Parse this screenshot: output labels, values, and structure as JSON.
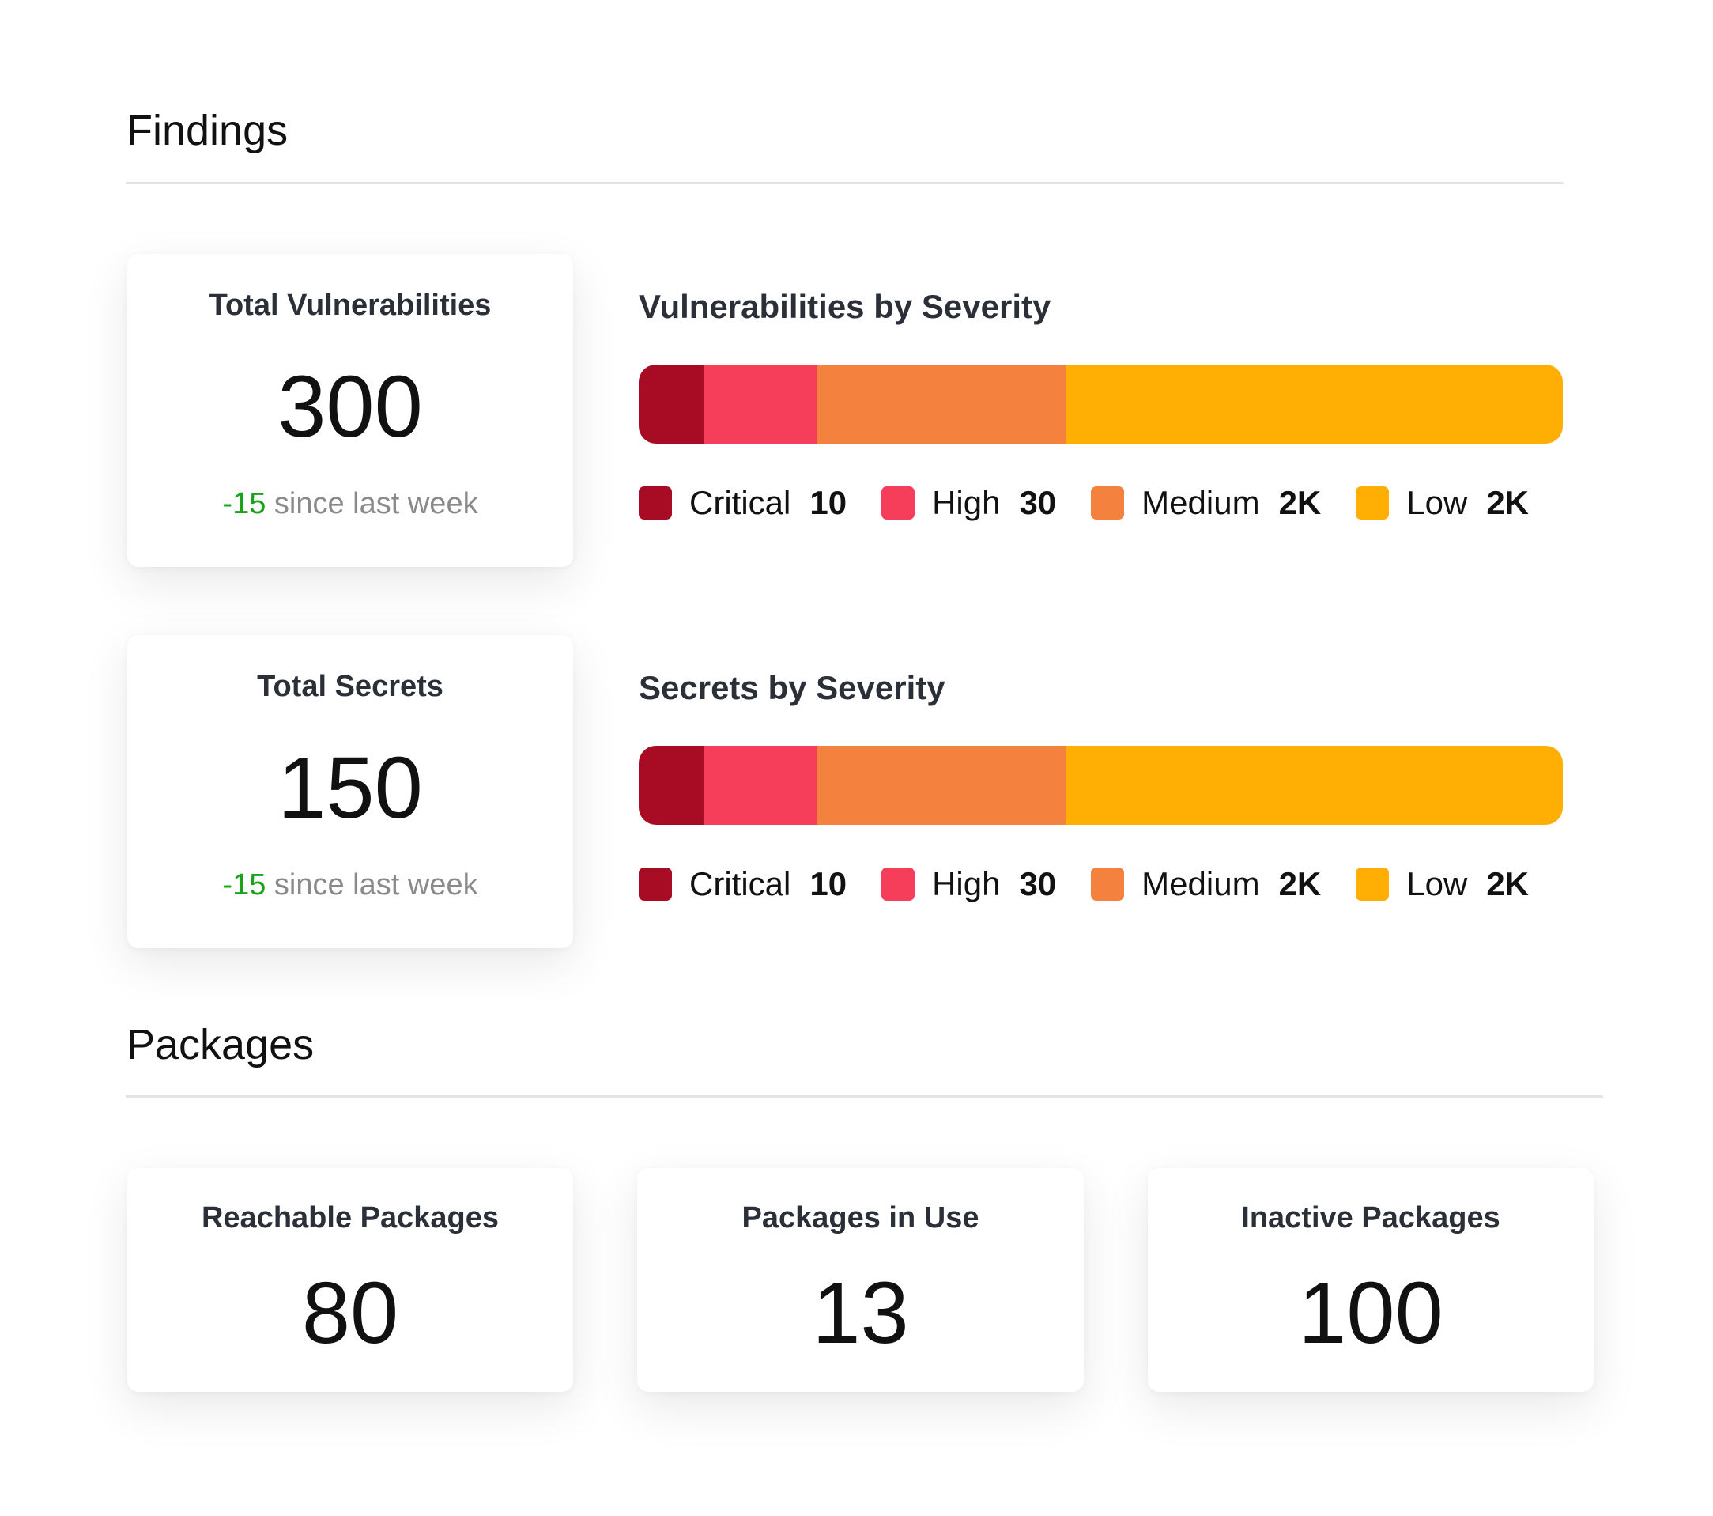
{
  "findings": {
    "title": "Findings",
    "cards": [
      {
        "title": "Total Vulnerabilities",
        "value": "300",
        "delta": "-15",
        "delta_suffix": "since last week"
      },
      {
        "title": "Total Secrets",
        "value": "150",
        "delta": "-15",
        "delta_suffix": "since last week"
      }
    ],
    "charts": [
      {
        "title": "Vulnerabilities by Severity",
        "segments": [
          {
            "label": "Critical",
            "value": "10",
            "color": "#a80c24",
            "fraction": 0.071
          },
          {
            "label": "High",
            "value": "30",
            "color": "#f63e5a",
            "fraction": 0.122
          },
          {
            "label": "Medium",
            "value": "2K",
            "color": "#f5813e",
            "fraction": 0.269
          },
          {
            "label": "Low",
            "value": "2K",
            "color": "#ffae03",
            "fraction": 0.538
          }
        ]
      },
      {
        "title": "Secrets by Severity",
        "segments": [
          {
            "label": "Critical",
            "value": "10",
            "color": "#a80c24",
            "fraction": 0.071
          },
          {
            "label": "High",
            "value": "30",
            "color": "#f63e5a",
            "fraction": 0.122
          },
          {
            "label": "Medium",
            "value": "2K",
            "color": "#f5813e",
            "fraction": 0.269
          },
          {
            "label": "Low",
            "value": "2K",
            "color": "#ffae03",
            "fraction": 0.538
          }
        ]
      }
    ]
  },
  "packages": {
    "title": "Packages",
    "cards": [
      {
        "title": "Reachable Packages",
        "value": "80"
      },
      {
        "title": "Packages in Use",
        "value": "13"
      },
      {
        "title": "Inactive Packages",
        "value": "100"
      }
    ]
  }
}
